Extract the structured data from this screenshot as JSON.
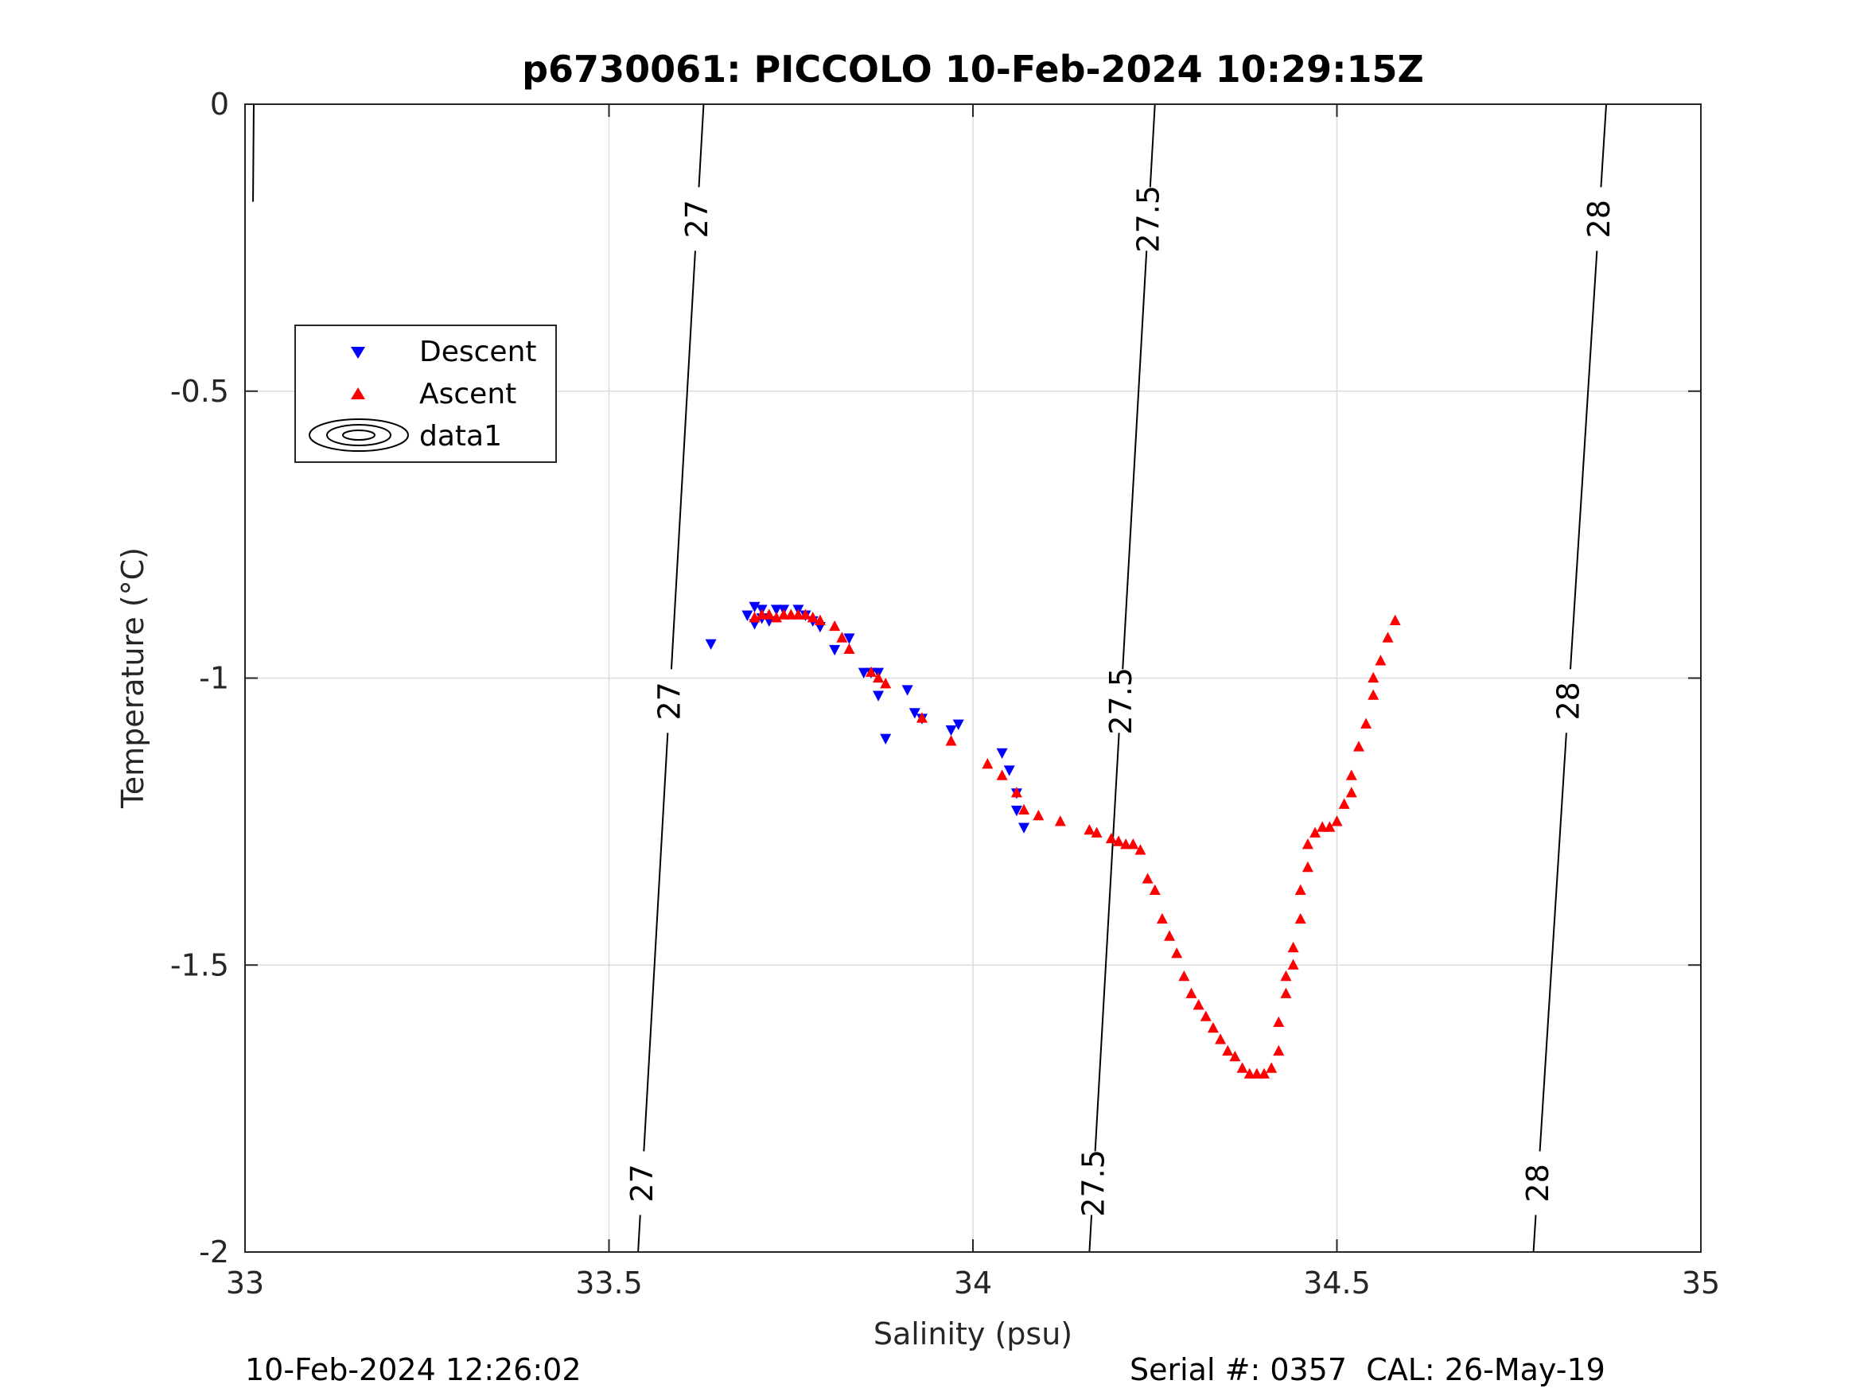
{
  "chart_data": {
    "type": "scatter",
    "title": "p6730061: PICCOLO 10-Feb-2024 10:29:15Z",
    "xlabel": "Salinity (psu)",
    "ylabel": "Temperature (°C)",
    "xlim": [
      33,
      35
    ],
    "ylim": [
      -2,
      0
    ],
    "xticks": [
      33,
      33.5,
      34,
      34.5,
      35
    ],
    "yticks": [
      0,
      -0.5,
      -1,
      -1.5,
      -2
    ],
    "xtick_labels": [
      "33",
      "33.5",
      "34",
      "34.5",
      "35"
    ],
    "ytick_labels": [
      "0",
      "-0.5",
      "-1",
      "-1.5",
      "-2"
    ],
    "grid": true,
    "legend": {
      "position": "upper-left",
      "entries": [
        {
          "label": "Descent",
          "marker": "triangle-down",
          "color": "#0000ff"
        },
        {
          "label": "Ascent",
          "marker": "triangle-up",
          "color": "#ff0000"
        },
        {
          "label": "data1",
          "marker": "contour",
          "color": "#000000"
        }
      ]
    },
    "series": [
      {
        "name": "Descent",
        "color": "#0000ff",
        "marker": "triangle-down",
        "x": [
          33.64,
          33.69,
          33.7,
          33.7,
          33.71,
          33.71,
          33.72,
          33.73,
          33.74,
          33.76,
          33.77,
          33.78,
          33.79,
          33.81,
          33.83,
          33.85,
          33.86,
          33.87,
          33.87,
          33.88,
          33.91,
          33.92,
          33.93,
          33.97,
          33.98,
          34.04,
          34.05,
          34.06,
          34.06,
          34.07
        ],
        "y": [
          -0.94,
          -0.89,
          -0.875,
          -0.905,
          -0.88,
          -0.895,
          -0.9,
          -0.88,
          -0.88,
          -0.88,
          -0.89,
          -0.9,
          -0.91,
          -0.95,
          -0.93,
          -0.99,
          -0.99,
          -0.99,
          -1.03,
          -1.105,
          -1.02,
          -1.06,
          -1.07,
          -1.09,
          -1.08,
          -1.13,
          -1.16,
          -1.2,
          -1.23,
          -1.26
        ]
      },
      {
        "name": "Ascent",
        "color": "#ff0000",
        "marker": "triangle-up",
        "x": [
          33.7,
          33.71,
          33.72,
          33.73,
          33.74,
          33.75,
          33.76,
          33.77,
          33.78,
          33.79,
          33.81,
          33.82,
          33.83,
          33.86,
          33.87,
          33.88,
          33.93,
          33.97,
          34.02,
          34.04,
          34.06,
          34.07,
          34.09,
          34.12,
          34.16,
          34.17,
          34.19,
          34.2,
          34.21,
          34.22,
          34.23,
          34.24,
          34.25,
          34.26,
          34.27,
          34.28,
          34.29,
          34.3,
          34.31,
          34.32,
          34.33,
          34.34,
          34.35,
          34.36,
          34.37,
          34.38,
          34.39,
          34.4,
          34.41,
          34.42,
          34.42,
          34.43,
          34.43,
          34.44,
          34.44,
          34.45,
          34.45,
          34.46,
          34.46,
          34.47,
          34.48,
          34.49,
          34.5,
          34.51,
          34.52,
          34.52,
          34.53,
          34.54,
          34.55,
          34.55,
          34.56,
          34.57,
          34.58
        ],
        "y": [
          -0.895,
          -0.89,
          -0.89,
          -0.895,
          -0.89,
          -0.89,
          -0.89,
          -0.89,
          -0.895,
          -0.9,
          -0.91,
          -0.93,
          -0.95,
          -0.99,
          -1.0,
          -1.01,
          -1.07,
          -1.11,
          -1.15,
          -1.17,
          -1.2,
          -1.23,
          -1.24,
          -1.25,
          -1.265,
          -1.27,
          -1.28,
          -1.285,
          -1.29,
          -1.29,
          -1.3,
          -1.35,
          -1.37,
          -1.42,
          -1.45,
          -1.48,
          -1.52,
          -1.55,
          -1.57,
          -1.59,
          -1.61,
          -1.63,
          -1.65,
          -1.66,
          -1.68,
          -1.69,
          -1.69,
          -1.69,
          -1.68,
          -1.65,
          -1.6,
          -1.55,
          -1.52,
          -1.5,
          -1.47,
          -1.42,
          -1.37,
          -1.33,
          -1.29,
          -1.27,
          -1.26,
          -1.26,
          -1.25,
          -1.22,
          -1.2,
          -1.17,
          -1.12,
          -1.08,
          -1.03,
          -1.0,
          -0.97,
          -0.93,
          -0.9
        ]
      }
    ],
    "density_contours": [
      {
        "label": "27",
        "x_at_top": 33.63,
        "x_at_bottom": 33.54
      },
      {
        "label": "27.5",
        "x_at_top": 34.25,
        "x_at_bottom": 34.16
      },
      {
        "label": "28",
        "x_at_top": 34.87,
        "x_at_bottom": 34.77
      },
      {
        "label": "",
        "x_at_top": 33.012,
        "x_at_bottom": 33.0,
        "y_end": -0.17
      }
    ]
  },
  "footer": {
    "left": "10-Feb-2024 12:26:02",
    "right": "Serial #: 0357  CAL: 26-May-19"
  }
}
